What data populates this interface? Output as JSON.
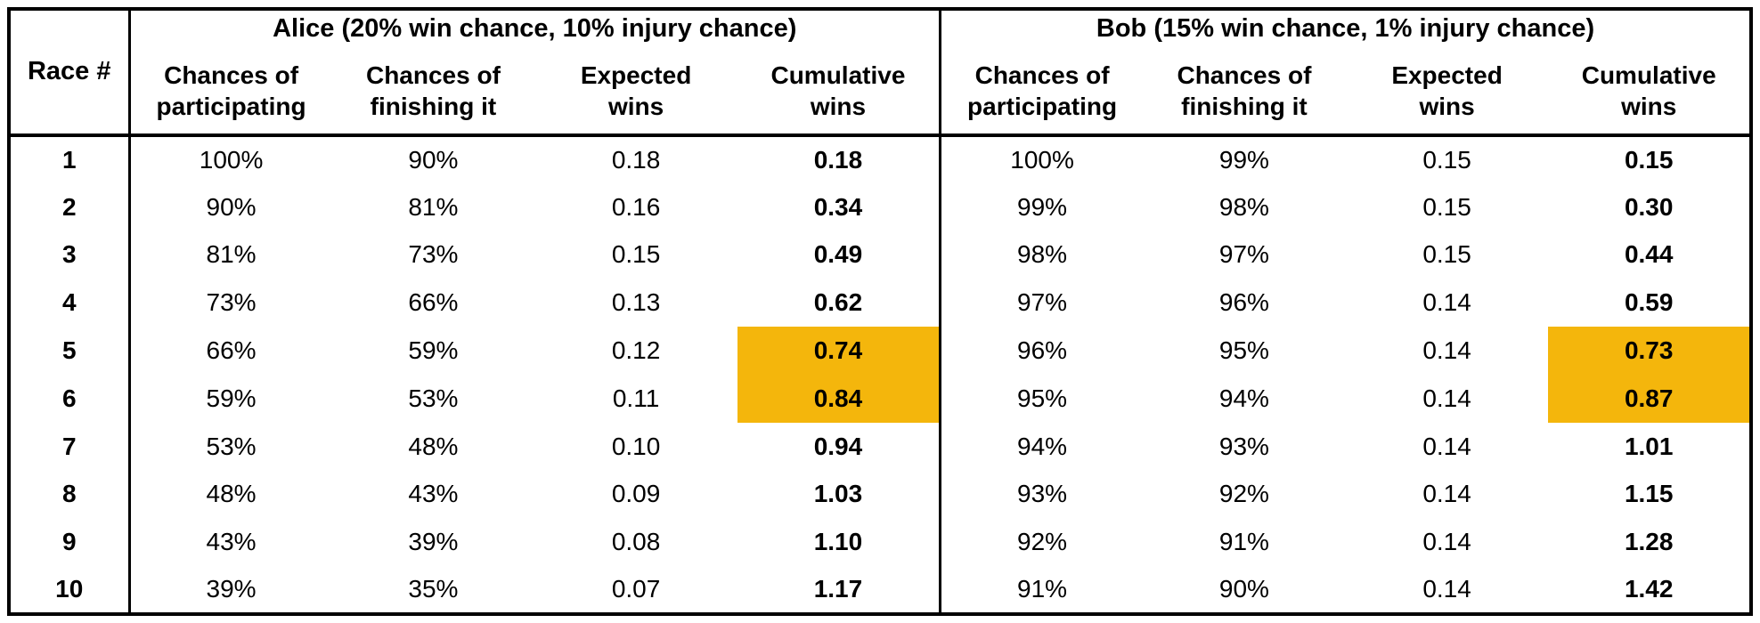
{
  "colors": {
    "highlight": "#F4B60C",
    "border": "#000000",
    "background": "#FFFFFF",
    "text": "#000000"
  },
  "chart_data": {
    "type": "table",
    "race_col_header": "Race #",
    "groups": [
      {
        "title": "Alice (20% win chance, 10% injury chance)"
      },
      {
        "title": "Bob (15% win chance, 1% injury chance)"
      }
    ],
    "sub_headers": [
      "Chances of\nparticipating",
      "Chances of\nfinishing it",
      "Expected\nwins",
      "Cumulative\nwins"
    ],
    "rows": [
      {
        "race": "1",
        "alice": [
          "100%",
          "90%",
          "0.18",
          "0.18"
        ],
        "bob": [
          "100%",
          "99%",
          "0.15",
          "0.15"
        ]
      },
      {
        "race": "2",
        "alice": [
          "90%",
          "81%",
          "0.16",
          "0.34"
        ],
        "bob": [
          "99%",
          "98%",
          "0.15",
          "0.30"
        ]
      },
      {
        "race": "3",
        "alice": [
          "81%",
          "73%",
          "0.15",
          "0.49"
        ],
        "bob": [
          "98%",
          "97%",
          "0.15",
          "0.44"
        ]
      },
      {
        "race": "4",
        "alice": [
          "73%",
          "66%",
          "0.13",
          "0.62"
        ],
        "bob": [
          "97%",
          "96%",
          "0.14",
          "0.59"
        ]
      },
      {
        "race": "5",
        "alice": [
          "66%",
          "59%",
          "0.12",
          "0.74"
        ],
        "bob": [
          "96%",
          "95%",
          "0.14",
          "0.73"
        ]
      },
      {
        "race": "6",
        "alice": [
          "59%",
          "53%",
          "0.11",
          "0.84"
        ],
        "bob": [
          "95%",
          "94%",
          "0.14",
          "0.87"
        ]
      },
      {
        "race": "7",
        "alice": [
          "53%",
          "48%",
          "0.10",
          "0.94"
        ],
        "bob": [
          "94%",
          "93%",
          "0.14",
          "1.01"
        ]
      },
      {
        "race": "8",
        "alice": [
          "48%",
          "43%",
          "0.09",
          "1.03"
        ],
        "bob": [
          "93%",
          "92%",
          "0.14",
          "1.15"
        ]
      },
      {
        "race": "9",
        "alice": [
          "43%",
          "39%",
          "0.08",
          "1.10"
        ],
        "bob": [
          "92%",
          "91%",
          "0.14",
          "1.28"
        ]
      },
      {
        "race": "10",
        "alice": [
          "39%",
          "35%",
          "0.07",
          "1.17"
        ],
        "bob": [
          "91%",
          "90%",
          "0.14",
          "1.42"
        ]
      }
    ],
    "highlighted_races": [
      5,
      6
    ],
    "highlight_applies_to_column": "Cumulative wins",
    "layout_hints": {
      "grid": "outer border, header underline and section dividers only",
      "bold_columns": [
        "Race #",
        "Cumulative wins"
      ]
    }
  }
}
